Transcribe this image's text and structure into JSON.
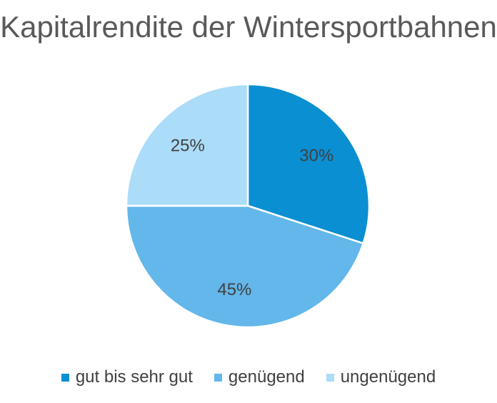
{
  "chart_data": {
    "type": "pie",
    "title": "Kapitalrendite der Wintersportbahnen",
    "categories": [
      "gut bis sehr gut",
      "genügend",
      "ungenügend"
    ],
    "values": [
      30,
      45,
      25
    ],
    "data_labels": [
      "30%",
      "45%",
      "25%"
    ],
    "colors": [
      "#0a8fd2",
      "#63b7ea",
      "#abdcf8"
    ],
    "legend": "bottom",
    "start_angle": "12 o'clock",
    "direction": "clockwise"
  }
}
